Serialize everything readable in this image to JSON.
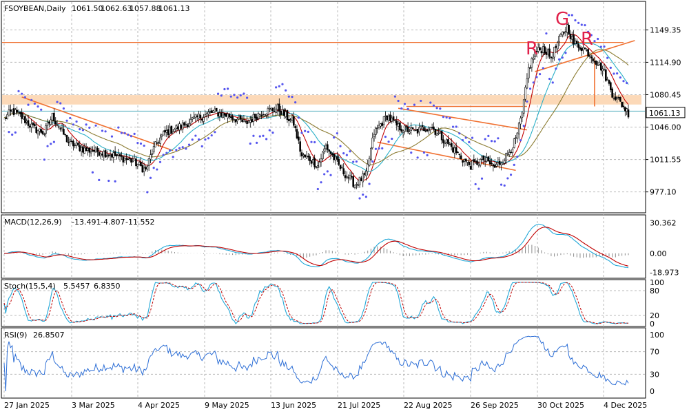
{
  "chart_data": {
    "type": "line",
    "symbol": "FSOYBEAN",
    "timeframe": "Daily",
    "header": {
      "title": "FSOYBEAN,Daily",
      "open": "1061.50",
      "high": "1062.63",
      "low": "1057.88",
      "close": "1061.13"
    },
    "x_labels": [
      "27 Jan 2025",
      "3 Mar 2025",
      "4 Apr 2025",
      "9 May 2025",
      "13 Jun 2025",
      "21 Jul 2025",
      "22 Aug 2025",
      "26 Sep 2025",
      "30 Oct 2025",
      "4 Dec 2025"
    ],
    "price": {
      "ylim": [
        960,
        1165
      ],
      "ticks": [
        "1149.35",
        "1114.90",
        "1080.45",
        "1046.00",
        "1011.55",
        "977.10"
      ],
      "tick_values": [
        1149.35,
        1114.9,
        1080.45,
        1046.0,
        1011.55,
        977.1
      ],
      "current_label": "1061.13",
      "current_value": 1061.13,
      "close_anchors": [
        [
          0,
          1055
        ],
        [
          5,
          1063
        ],
        [
          10,
          1058
        ],
        [
          18,
          1045
        ],
        [
          25,
          1040
        ],
        [
          30,
          1058
        ],
        [
          40,
          1030
        ],
        [
          50,
          1022
        ],
        [
          60,
          1020
        ],
        [
          70,
          1015
        ],
        [
          80,
          1010
        ],
        [
          88,
          1000
        ],
        [
          92,
          1020
        ],
        [
          96,
          1032
        ],
        [
          100,
          1040
        ],
        [
          110,
          1047
        ],
        [
          120,
          1056
        ],
        [
          130,
          1062
        ],
        [
          140,
          1058
        ],
        [
          150,
          1050
        ],
        [
          160,
          1062
        ],
        [
          170,
          1066
        ],
        [
          180,
          1050
        ],
        [
          185,
          1015
        ],
        [
          190,
          1012
        ],
        [
          195,
          1005
        ],
        [
          200,
          1026
        ],
        [
          210,
          1000
        ],
        [
          218,
          985
        ],
        [
          225,
          995
        ],
        [
          230,
          1040
        ],
        [
          238,
          1058
        ],
        [
          245,
          1046
        ],
        [
          255,
          1041
        ],
        [
          265,
          1047
        ],
        [
          275,
          1030
        ],
        [
          285,
          1012
        ],
        [
          290,
          1005
        ],
        [
          298,
          1012
        ],
        [
          305,
          1003
        ],
        [
          312,
          1015
        ],
        [
          318,
          1032
        ],
        [
          322,
          1060
        ],
        [
          326,
          1108
        ],
        [
          330,
          1125
        ],
        [
          335,
          1130
        ],
        [
          340,
          1120
        ],
        [
          346,
          1142
        ],
        [
          350,
          1153
        ],
        [
          354,
          1135
        ],
        [
          360,
          1130
        ],
        [
          366,
          1120
        ],
        [
          372,
          1108
        ],
        [
          378,
          1082
        ],
        [
          384,
          1070
        ],
        [
          388,
          1061
        ]
      ],
      "annotations": [
        "R",
        "G",
        "R"
      ]
    },
    "indicators": [
      {
        "name": "MACD",
        "params": "MACD(12,26,9)",
        "values": [
          "-13.491",
          "-4.807",
          "-11.552"
        ],
        "ticks": [
          "30.362",
          "0.00",
          "-18.973"
        ]
      },
      {
        "name": "Stochastic",
        "params": "Stoch(15,5,4)",
        "values": [
          "5.5457",
          "6.8350"
        ],
        "ticks": [
          "100",
          "80",
          "20",
          "0"
        ]
      },
      {
        "name": "RSI",
        "params": "RSI(9)",
        "values": [
          "26.8507"
        ],
        "ticks": [
          "100",
          "70",
          "30",
          "0"
        ]
      }
    ],
    "colors": {
      "up_candle": "#ffffff",
      "down_candle": "#000000",
      "ma_fast": "#c00000",
      "ma_mid": "#2ab0c8",
      "ma_slow": "#8b7b30",
      "sar": "#5555ee",
      "trendline": "#f07030",
      "zone": "#fcd9b8",
      "signal": "#c00000",
      "macd": "#22a8d8",
      "rsi": "#2e6fd6",
      "annotation": "#e0204a"
    }
  }
}
